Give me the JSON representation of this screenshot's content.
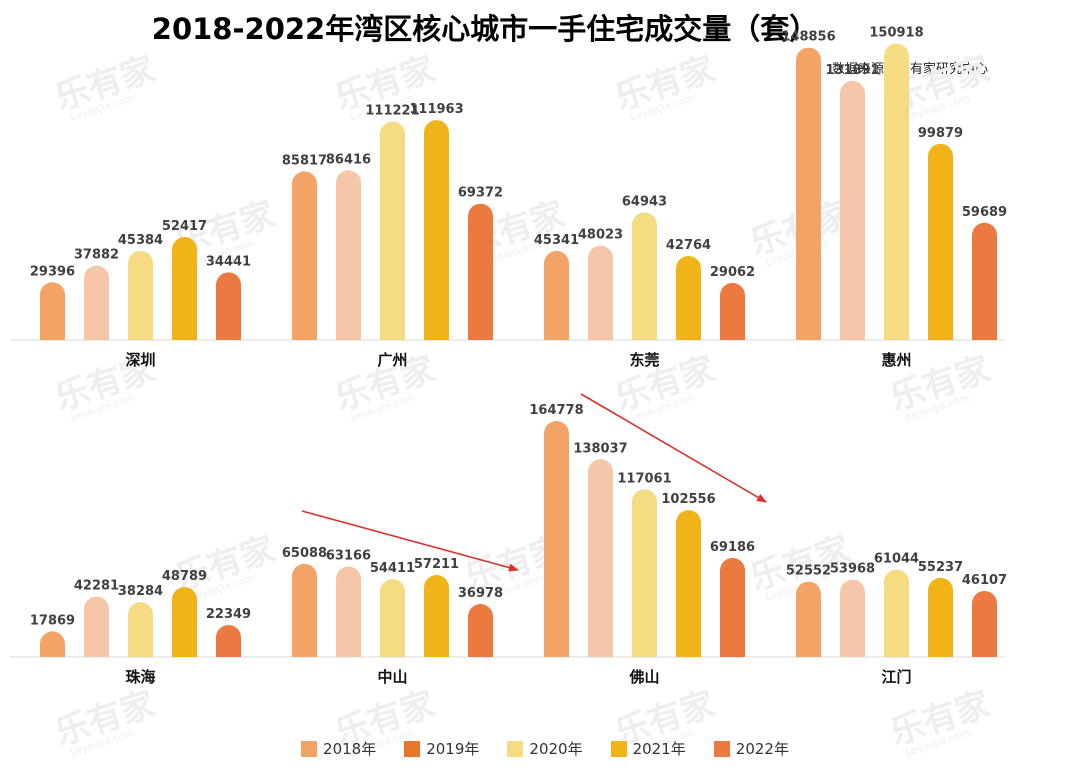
{
  "title": "2018-2022年湾区核心城市一手住宅成交量（套）",
  "source": "数据来源：乐有家研究中心",
  "watermark": "乐有家",
  "watermark_sub": "Leyoujia.com",
  "colors": {
    "2018年": "#f2a365",
    "2019年": "#f5c6a7",
    "2020年": "#f5dc82",
    "2021年": "#f0b418",
    "2022年": "#ec7a40",
    "arrow": "#d9302c"
  },
  "legend": [
    {
      "label": "2018年",
      "color": "#f2a365"
    },
    {
      "label": "2019年",
      "color": "#e8762d"
    },
    {
      "label": "2020年",
      "color": "#f5dc82"
    },
    {
      "label": "2021年",
      "color": "#f0b418"
    },
    {
      "label": "2022年",
      "color": "#ec7a40"
    }
  ],
  "chart_data": {
    "type": "bar",
    "series_names": [
      "2018年",
      "2019年",
      "2020年",
      "2021年",
      "2022年"
    ],
    "panels": [
      {
        "row": 1,
        "categories": [
          "深圳",
          "广州",
          "东莞",
          "惠州"
        ],
        "values": [
          [
            29396,
            37882,
            45384,
            52417,
            34441
          ],
          [
            85817,
            86416,
            111221,
            111963,
            69372
          ],
          [
            45341,
            48023,
            64943,
            42764,
            29062
          ],
          [
            148856,
            131891,
            150918,
            99879,
            59689
          ]
        ]
      },
      {
        "row": 2,
        "categories": [
          "珠海",
          "中山",
          "佛山",
          "江门"
        ],
        "values": [
          [
            17869,
            42281,
            38284,
            48789,
            22349
          ],
          [
            65088,
            63166,
            54411,
            57211,
            36978
          ],
          [
            164778,
            138037,
            117061,
            102556,
            69186
          ],
          [
            52552,
            53968,
            61044,
            55237,
            46107
          ]
        ]
      }
    ]
  }
}
